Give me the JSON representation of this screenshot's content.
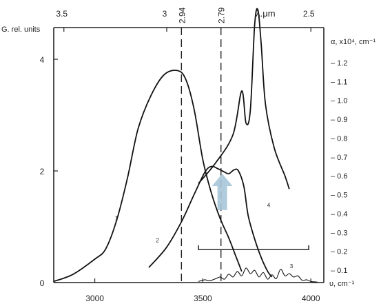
{
  "chart_data": {
    "type": "line",
    "title": "",
    "left_axis": {
      "label": "G. rel. units",
      "ticks": [
        0,
        2,
        4
      ],
      "range": [
        0,
        4.8
      ]
    },
    "right_axis": {
      "label": "α, x10⁴, cm⁻¹",
      "ticks": [
        "– 1.2",
        "– 1.1",
        "– 1.0",
        "– 0.9",
        "– 0.8",
        "– 0.7",
        "– 0.6",
        "– 0.5",
        "– 0.4",
        "– 0.3",
        "– 0.2",
        "– 0.1"
      ],
      "tick_values": [
        1.2,
        1.1,
        1.0,
        0.9,
        0.8,
        0.7,
        0.6,
        0.5,
        0.4,
        0.3,
        0.2,
        0.1
      ]
    },
    "bottom_axis": {
      "label": "υ, cm⁻¹",
      "ticks": [
        3000,
        3500,
        4000
      ],
      "range": [
        2810,
        4060
      ]
    },
    "top_axis": {
      "label": "λ.μm",
      "ticks": [
        {
          "label": "3.5",
          "wavenumber": 2857
        },
        {
          "label": "3",
          "wavenumber": 3333
        },
        {
          "label": "2.5",
          "wavenumber": 4000
        }
      ],
      "markers": [
        {
          "label": "2.94",
          "wavenumber": 3401
        },
        {
          "label": "2.79",
          "wavenumber": 3584
        }
      ]
    },
    "series": [
      {
        "name": "1",
        "points": [
          [
            2810,
            0.02
          ],
          [
            2900,
            0.15
          ],
          [
            3000,
            0.42
          ],
          [
            3050,
            0.6
          ],
          [
            3100,
            1.1
          ],
          [
            3150,
            1.85
          ],
          [
            3200,
            2.75
          ],
          [
            3260,
            3.35
          ],
          [
            3320,
            3.72
          ],
          [
            3380,
            3.8
          ],
          [
            3420,
            3.65
          ],
          [
            3460,
            3.1
          ],
          [
            3500,
            2.2
          ],
          [
            3540,
            1.6
          ],
          [
            3580,
            1.15
          ],
          [
            3620,
            0.8
          ],
          [
            3650,
            0.5
          ],
          [
            3680,
            0.2
          ]
        ]
      },
      {
        "name": "2",
        "points": [
          [
            3250,
            0.27
          ],
          [
            3330,
            0.62
          ],
          [
            3400,
            1.08
          ],
          [
            3460,
            1.58
          ],
          [
            3510,
            1.98
          ],
          [
            3540,
            2.08
          ],
          [
            3570,
            2.04
          ],
          [
            3600,
            1.98
          ],
          [
            3620,
            1.95
          ],
          [
            3645,
            2.02
          ],
          [
            3665,
            2.0
          ],
          [
            3690,
            1.72
          ],
          [
            3710,
            1.2
          ],
          [
            3740,
            0.78
          ],
          [
            3770,
            0.45
          ],
          [
            3800,
            0.2
          ],
          [
            3820,
            0.1
          ]
        ]
      },
      {
        "name": "3",
        "points": [
          [
            3480,
            0.02
          ],
          [
            3510,
            0.05
          ],
          [
            3530,
            0.03
          ],
          [
            3560,
            0.07
          ],
          [
            3580,
            0.1
          ],
          [
            3600,
            0.06
          ],
          [
            3620,
            0.15
          ],
          [
            3640,
            0.1
          ],
          [
            3660,
            0.2
          ],
          [
            3680,
            0.12
          ],
          [
            3700,
            0.26
          ],
          [
            3720,
            0.16
          ],
          [
            3740,
            0.22
          ],
          [
            3760,
            0.1
          ],
          [
            3780,
            0.18
          ],
          [
            3800,
            0.06
          ],
          [
            3820,
            0.14
          ],
          [
            3840,
            0.07
          ],
          [
            3860,
            0.24
          ],
          [
            3880,
            0.12
          ],
          [
            3900,
            0.16
          ],
          [
            3920,
            0.1
          ],
          [
            3940,
            0.12
          ],
          [
            3960,
            0.04
          ],
          [
            3980,
            0.05
          ],
          [
            4000,
            0.02
          ],
          [
            4030,
            0.01
          ]
        ]
      },
      {
        "name": "4",
        "points": [
          [
            3480,
            0.56
          ],
          [
            3560,
            0.67
          ],
          [
            3640,
            0.82
          ],
          [
            3680,
            1.05
          ],
          [
            3700,
            0.88
          ],
          [
            3720,
            0.95
          ],
          [
            3740,
            1.4
          ],
          [
            3755,
            1.48
          ],
          [
            3770,
            1.3
          ],
          [
            3790,
            0.98
          ],
          [
            3830,
            0.75
          ],
          [
            3880,
            0.6
          ],
          [
            3900,
            0.53
          ]
        ]
      }
    ],
    "annotations": [
      {
        "text": "arrow",
        "wavenumber": 3590,
        "from": 1.3,
        "to": 1.95
      }
    ]
  }
}
